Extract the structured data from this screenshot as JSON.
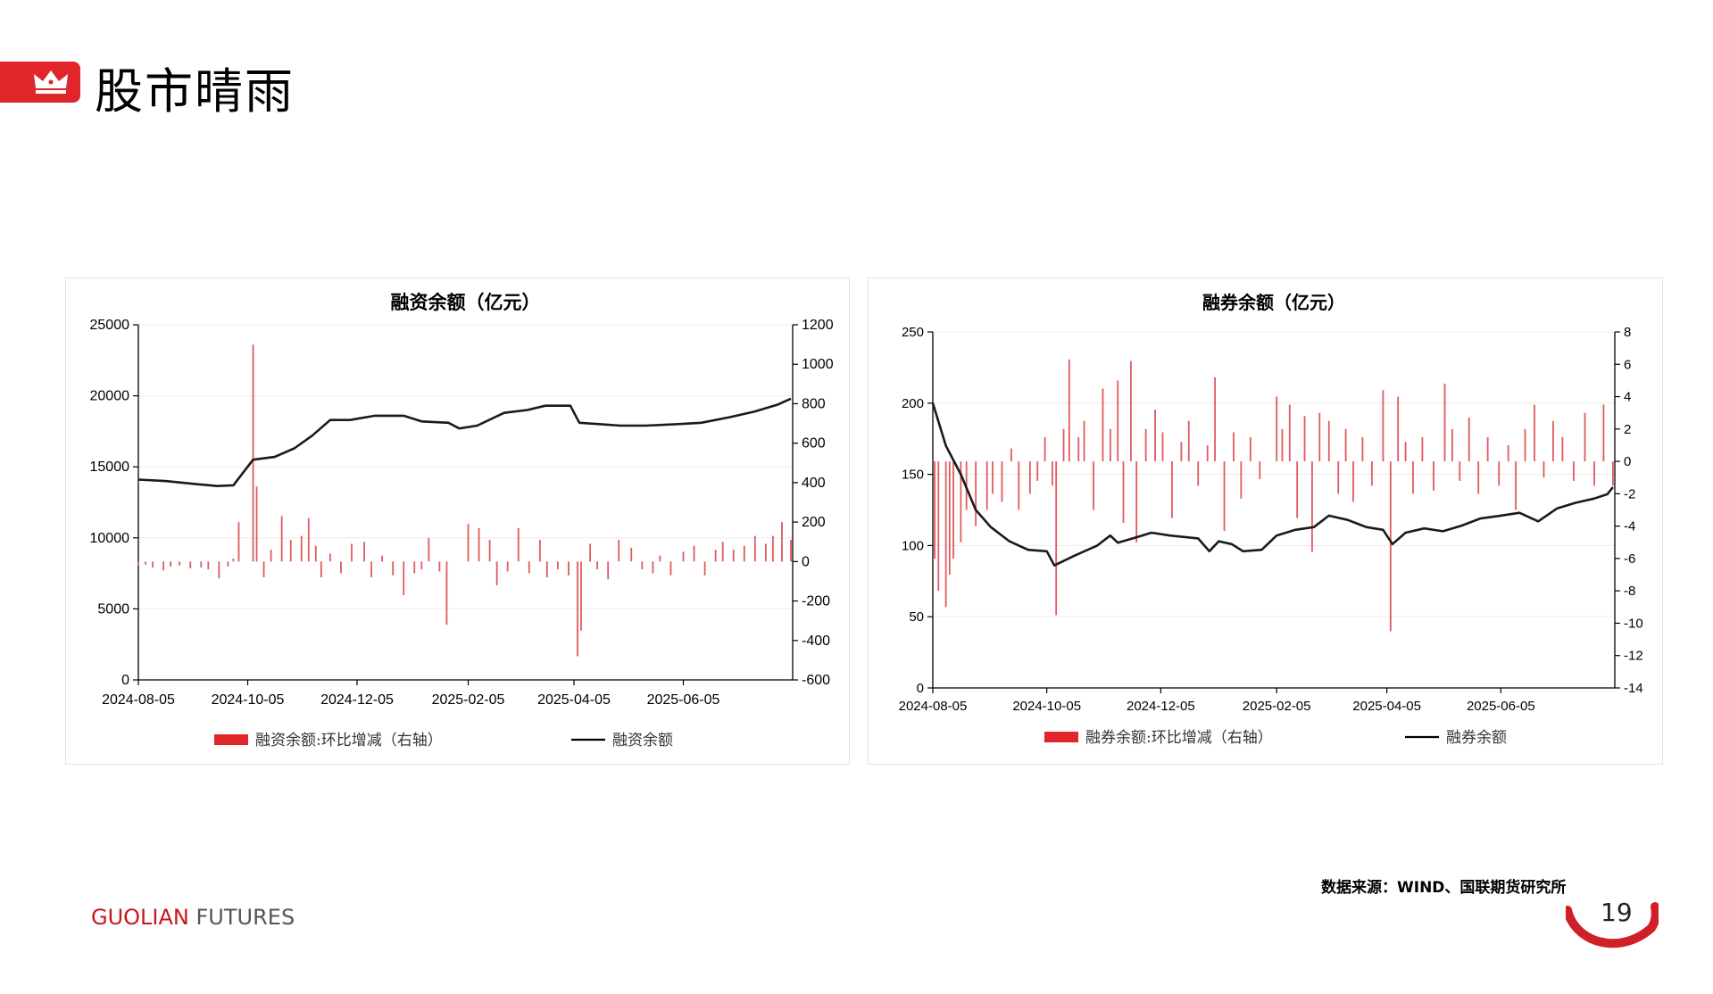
{
  "header": {
    "title": "股市晴雨"
  },
  "source_note": "数据来源：WIND、国联期货研究所",
  "footer": {
    "brand_part1": "GUOLIAN",
    "brand_part2": " FUTURES",
    "page_number": "19"
  },
  "colors": {
    "accent": "#e0262b",
    "bar": "#e05a5f",
    "line": "#1a1a1a"
  },
  "icons": {
    "title_tag": "crown-icon",
    "page_corner": "arc-icon"
  },
  "chart_data": [
    {
      "type": "bar+line",
      "title": "融资余额（亿元）",
      "x_ticks": [
        "2024-08-05",
        "2024-10-05",
        "2024-12-05",
        "2025-02-05",
        "2025-04-05",
        "2025-06-05"
      ],
      "y_left": {
        "min": 0,
        "max": 25000,
        "ticks": [
          0,
          5000,
          10000,
          15000,
          20000,
          25000
        ]
      },
      "y_right": {
        "min": -600,
        "max": 1200,
        "ticks": [
          -600,
          -400,
          -200,
          0,
          200,
          400,
          600,
          800,
          1000,
          1200
        ]
      },
      "legend": {
        "bar_label": "融资余额:环比增减（右轴）",
        "line_label": "融资余额",
        "position": "bottom"
      },
      "series": [
        {
          "name": "融资余额:环比增减（右轴）",
          "kind": "bar",
          "axis": "right",
          "points": [
            [
              "2024-08-05",
              -20
            ],
            [
              "2024-08-09",
              -15
            ],
            [
              "2024-08-13",
              -30
            ],
            [
              "2024-08-19",
              -45
            ],
            [
              "2024-08-23",
              -25
            ],
            [
              "2024-08-28",
              -20
            ],
            [
              "2024-09-03",
              -35
            ],
            [
              "2024-09-09",
              -30
            ],
            [
              "2024-09-13",
              -40
            ],
            [
              "2024-09-19",
              -85
            ],
            [
              "2024-09-24",
              -25
            ],
            [
              "2024-09-27",
              15
            ],
            [
              "2024-09-30",
              200
            ],
            [
              "2024-10-08",
              1100
            ],
            [
              "2024-10-10",
              380
            ],
            [
              "2024-10-14",
              -80
            ],
            [
              "2024-10-18",
              60
            ],
            [
              "2024-10-24",
              230
            ],
            [
              "2024-10-29",
              110
            ],
            [
              "2024-11-04",
              130
            ],
            [
              "2024-11-08",
              220
            ],
            [
              "2024-11-12",
              80
            ],
            [
              "2024-11-15",
              -80
            ],
            [
              "2024-11-20",
              40
            ],
            [
              "2024-11-26",
              -60
            ],
            [
              "2024-12-02",
              90
            ],
            [
              "2024-12-09",
              100
            ],
            [
              "2024-12-13",
              -80
            ],
            [
              "2024-12-19",
              30
            ],
            [
              "2024-12-25",
              -70
            ],
            [
              "2024-12-31",
              -170
            ],
            [
              "2025-01-06",
              -60
            ],
            [
              "2025-01-10",
              -40
            ],
            [
              "2025-01-14",
              120
            ],
            [
              "2025-01-20",
              -50
            ],
            [
              "2025-01-24",
              -320
            ],
            [
              "2025-02-05",
              190
            ],
            [
              "2025-02-11",
              170
            ],
            [
              "2025-02-17",
              110
            ],
            [
              "2025-02-21",
              -120
            ],
            [
              "2025-02-27",
              -50
            ],
            [
              "2025-03-05",
              170
            ],
            [
              "2025-03-11",
              -60
            ],
            [
              "2025-03-17",
              110
            ],
            [
              "2025-03-21",
              -80
            ],
            [
              "2025-03-27",
              -40
            ],
            [
              "2025-04-02",
              -70
            ],
            [
              "2025-04-07",
              -480
            ],
            [
              "2025-04-09",
              -350
            ],
            [
              "2025-04-14",
              90
            ],
            [
              "2025-04-18",
              -40
            ],
            [
              "2025-04-24",
              -90
            ],
            [
              "2025-04-30",
              110
            ],
            [
              "2025-05-07",
              70
            ],
            [
              "2025-05-13",
              -40
            ],
            [
              "2025-05-19",
              -60
            ],
            [
              "2025-05-23",
              30
            ],
            [
              "2025-05-29",
              -70
            ],
            [
              "2025-06-05",
              50
            ],
            [
              "2025-06-11",
              80
            ],
            [
              "2025-06-17",
              -70
            ],
            [
              "2025-06-23",
              60
            ],
            [
              "2025-06-27",
              100
            ],
            [
              "2025-07-03",
              60
            ],
            [
              "2025-07-09",
              80
            ],
            [
              "2025-07-15",
              130
            ],
            [
              "2025-07-21",
              90
            ],
            [
              "2025-07-25",
              130
            ],
            [
              "2025-07-30",
              200
            ],
            [
              "2025-08-04",
              110
            ]
          ]
        },
        {
          "name": "融资余额",
          "kind": "line",
          "axis": "left",
          "points": [
            [
              "2024-08-05",
              14100
            ],
            [
              "2024-08-20",
              14000
            ],
            [
              "2024-09-05",
              13800
            ],
            [
              "2024-09-18",
              13650
            ],
            [
              "2024-09-27",
              13700
            ],
            [
              "2024-10-08",
              15500
            ],
            [
              "2024-10-20",
              15700
            ],
            [
              "2024-10-31",
              16300
            ],
            [
              "2024-11-10",
              17200
            ],
            [
              "2024-11-20",
              18300
            ],
            [
              "2024-12-01",
              18300
            ],
            [
              "2024-12-15",
              18600
            ],
            [
              "2024-12-31",
              18600
            ],
            [
              "2025-01-10",
              18200
            ],
            [
              "2025-01-25",
              18100
            ],
            [
              "2025-01-31",
              17700
            ],
            [
              "2025-02-10",
              17900
            ],
            [
              "2025-02-25",
              18800
            ],
            [
              "2025-03-10",
              19000
            ],
            [
              "2025-03-20",
              19300
            ],
            [
              "2025-04-03",
              19300
            ],
            [
              "2025-04-08",
              18100
            ],
            [
              "2025-04-20",
              18000
            ],
            [
              "2025-05-01",
              17900
            ],
            [
              "2025-05-15",
              17900
            ],
            [
              "2025-06-01",
              18000
            ],
            [
              "2025-06-15",
              18100
            ],
            [
              "2025-07-01",
              18500
            ],
            [
              "2025-07-15",
              18900
            ],
            [
              "2025-07-28",
              19400
            ],
            [
              "2025-08-04",
              19800
            ]
          ]
        }
      ]
    },
    {
      "type": "bar+line",
      "title": "融券余额（亿元）",
      "x_ticks": [
        "2024-08-05",
        "2024-10-05",
        "2024-12-05",
        "2025-02-05",
        "2025-04-05",
        "2025-06-05"
      ],
      "y_left": {
        "min": 0,
        "max": 250,
        "ticks": [
          0,
          50,
          100,
          150,
          200,
          250
        ]
      },
      "y_right": {
        "min": -14,
        "max": 8,
        "ticks": [
          -14,
          -12,
          -10,
          -8,
          -6,
          -4,
          -2,
          0,
          2,
          4,
          6,
          8
        ]
      },
      "legend": {
        "bar_label": "融券余额:环比增减（右轴）",
        "line_label": "融券余额",
        "position": "bottom"
      },
      "series": [
        {
          "name": "融券余额:环比增减（右轴）",
          "kind": "bar",
          "axis": "right",
          "points": [
            [
              "2024-08-06",
              -6
            ],
            [
              "2024-08-08",
              -8
            ],
            [
              "2024-08-12",
              -9
            ],
            [
              "2024-08-14",
              -7
            ],
            [
              "2024-08-16",
              -6
            ],
            [
              "2024-08-20",
              -5
            ],
            [
              "2024-08-23",
              -3
            ],
            [
              "2024-08-28",
              -4
            ],
            [
              "2024-09-03",
              -3
            ],
            [
              "2024-09-06",
              -2
            ],
            [
              "2024-09-11",
              -2.5
            ],
            [
              "2024-09-16",
              0.8
            ],
            [
              "2024-09-20",
              -3
            ],
            [
              "2024-09-26",
              -2
            ],
            [
              "2024-09-30",
              -1.2
            ],
            [
              "2024-10-04",
              1.5
            ],
            [
              "2024-10-08",
              -1.5
            ],
            [
              "2024-10-10",
              -9.5
            ],
            [
              "2024-10-14",
              2
            ],
            [
              "2024-10-17",
              6.3
            ],
            [
              "2024-10-22",
              1.5
            ],
            [
              "2024-10-25",
              2.5
            ],
            [
              "2024-10-30",
              -3
            ],
            [
              "2024-11-04",
              4.5
            ],
            [
              "2024-11-08",
              2
            ],
            [
              "2024-11-12",
              5
            ],
            [
              "2024-11-15",
              -3.8
            ],
            [
              "2024-11-19",
              6.2
            ],
            [
              "2024-11-22",
              -5
            ],
            [
              "2024-11-27",
              2
            ],
            [
              "2024-12-02",
              3.2
            ],
            [
              "2024-12-06",
              1.8
            ],
            [
              "2024-12-11",
              -3.5
            ],
            [
              "2024-12-16",
              1.2
            ],
            [
              "2024-12-20",
              2.5
            ],
            [
              "2024-12-25",
              -1.5
            ],
            [
              "2024-12-30",
              1
            ],
            [
              "2025-01-03",
              5.2
            ],
            [
              "2025-01-08",
              -4.3
            ],
            [
              "2025-01-13",
              1.8
            ],
            [
              "2025-01-17",
              -2.3
            ],
            [
              "2025-01-22",
              1.5
            ],
            [
              "2025-01-27",
              -1.1
            ],
            [
              "2025-02-05",
              4
            ],
            [
              "2025-02-08",
              2
            ],
            [
              "2025-02-12",
              3.5
            ],
            [
              "2025-02-16",
              -3.5
            ],
            [
              "2025-02-20",
              2.8
            ],
            [
              "2025-02-24",
              -5.6
            ],
            [
              "2025-02-28",
              3
            ],
            [
              "2025-03-05",
              2.5
            ],
            [
              "2025-03-10",
              -2
            ],
            [
              "2025-03-14",
              2
            ],
            [
              "2025-03-18",
              -2.5
            ],
            [
              "2025-03-23",
              1.5
            ],
            [
              "2025-03-28",
              -1.5
            ],
            [
              "2025-04-03",
              4.4
            ],
            [
              "2025-04-07",
              -10.5
            ],
            [
              "2025-04-11",
              4
            ],
            [
              "2025-04-15",
              1.2
            ],
            [
              "2025-04-19",
              -2
            ],
            [
              "2025-04-24",
              1.5
            ],
            [
              "2025-04-30",
              -1.8
            ],
            [
              "2025-05-06",
              4.8
            ],
            [
              "2025-05-10",
              2
            ],
            [
              "2025-05-14",
              -1.2
            ],
            [
              "2025-05-19",
              2.7
            ],
            [
              "2025-05-24",
              -2
            ],
            [
              "2025-05-29",
              1.5
            ],
            [
              "2025-06-04",
              -1.5
            ],
            [
              "2025-06-09",
              1
            ],
            [
              "2025-06-13",
              -3
            ],
            [
              "2025-06-18",
              2
            ],
            [
              "2025-06-23",
              3.5
            ],
            [
              "2025-06-28",
              -1
            ],
            [
              "2025-07-03",
              2.5
            ],
            [
              "2025-07-08",
              1.5
            ],
            [
              "2025-07-14",
              -1.2
            ],
            [
              "2025-07-20",
              3
            ],
            [
              "2025-07-25",
              -1.5
            ],
            [
              "2025-07-30",
              3.5
            ],
            [
              "2025-08-04",
              -1.5
            ]
          ]
        },
        {
          "name": "融券余额",
          "kind": "line",
          "axis": "left",
          "points": [
            [
              "2024-08-05",
              200
            ],
            [
              "2024-08-12",
              170
            ],
            [
              "2024-08-20",
              150
            ],
            [
              "2024-08-28",
              125
            ],
            [
              "2024-09-05",
              113
            ],
            [
              "2024-09-15",
              103
            ],
            [
              "2024-09-25",
              97
            ],
            [
              "2024-10-05",
              96
            ],
            [
              "2024-10-09",
              86
            ],
            [
              "2024-10-20",
              93
            ],
            [
              "2024-11-01",
              100
            ],
            [
              "2024-11-08",
              107
            ],
            [
              "2024-11-12",
              102
            ],
            [
              "2024-11-20",
              105
            ],
            [
              "2024-11-30",
              109
            ],
            [
              "2024-12-10",
              107
            ],
            [
              "2024-12-25",
              105
            ],
            [
              "2024-12-31",
              96
            ],
            [
              "2025-01-05",
              103
            ],
            [
              "2025-01-12",
              101
            ],
            [
              "2025-01-18",
              96
            ],
            [
              "2025-01-28",
              97
            ],
            [
              "2025-02-05",
              107
            ],
            [
              "2025-02-15",
              111
            ],
            [
              "2025-02-25",
              113
            ],
            [
              "2025-03-05",
              121
            ],
            [
              "2025-03-15",
              118
            ],
            [
              "2025-03-25",
              113
            ],
            [
              "2025-04-03",
              111
            ],
            [
              "2025-04-08",
              101
            ],
            [
              "2025-04-15",
              109
            ],
            [
              "2025-04-25",
              112
            ],
            [
              "2025-05-05",
              110
            ],
            [
              "2025-05-15",
              114
            ],
            [
              "2025-05-25",
              119
            ],
            [
              "2025-06-05",
              121
            ],
            [
              "2025-06-15",
              123
            ],
            [
              "2025-06-25",
              117
            ],
            [
              "2025-07-05",
              126
            ],
            [
              "2025-07-15",
              130
            ],
            [
              "2025-07-25",
              133
            ],
            [
              "2025-08-01",
              136
            ],
            [
              "2025-08-04",
              141
            ]
          ]
        }
      ]
    }
  ]
}
